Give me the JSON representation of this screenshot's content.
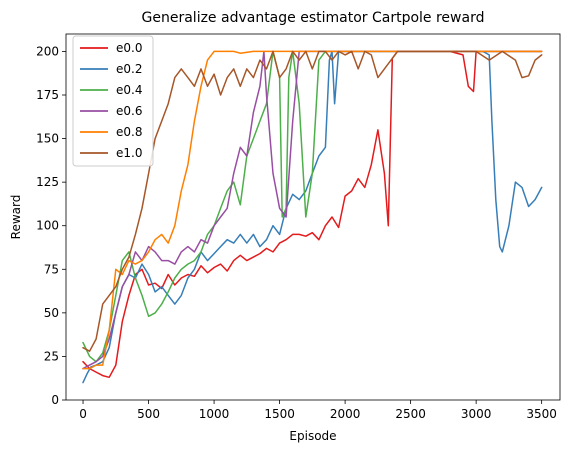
{
  "chart_data": {
    "type": "line",
    "title": "Generalize advantage estimator Cartpole reward",
    "xlabel": "Episode",
    "ylabel": "Reward",
    "xlim": [
      -130,
      3640
    ],
    "ylim": [
      0,
      210
    ],
    "xticks": [
      0,
      500,
      1000,
      1500,
      2000,
      2500,
      3000,
      3500
    ],
    "yticks": [
      0,
      25,
      50,
      75,
      100,
      125,
      150,
      175,
      200
    ],
    "grid": false,
    "legend_position": "top-left",
    "series": [
      {
        "name": "e0.0",
        "color": "#e41a1c",
        "x": [
          0,
          50,
          100,
          150,
          200,
          250,
          300,
          350,
          400,
          450,
          500,
          550,
          600,
          650,
          700,
          750,
          800,
          850,
          900,
          950,
          1000,
          1050,
          1100,
          1150,
          1200,
          1250,
          1300,
          1350,
          1400,
          1450,
          1500,
          1550,
          1600,
          1650,
          1700,
          1750,
          1800,
          1850,
          1900,
          1950,
          2000,
          2050,
          2100,
          2150,
          2200,
          2250,
          2300,
          2330,
          2360,
          2400,
          2500,
          2600,
          2700,
          2800,
          2900,
          2940,
          2980,
          3000,
          3100,
          3200,
          3300,
          3400,
          3500
        ],
        "y": [
          22,
          18,
          16,
          14,
          13,
          20,
          45,
          60,
          72,
          75,
          66,
          67,
          64,
          72,
          66,
          70,
          72,
          71,
          77,
          73,
          76,
          78,
          74,
          80,
          83,
          80,
          82,
          84,
          87,
          85,
          90,
          92,
          95,
          95,
          94,
          96,
          92,
          100,
          105,
          99,
          117,
          120,
          127,
          122,
          135,
          155,
          130,
          100,
          196,
          200,
          200,
          200,
          200,
          200,
          198,
          180,
          177,
          200,
          200,
          200,
          200,
          200,
          200
        ]
      },
      {
        "name": "e0.2",
        "color": "#377eb8",
        "x": [
          0,
          30,
          60,
          100,
          150,
          200,
          250,
          300,
          350,
          400,
          450,
          500,
          550,
          600,
          650,
          700,
          750,
          800,
          850,
          900,
          950,
          1000,
          1050,
          1100,
          1150,
          1200,
          1250,
          1300,
          1350,
          1400,
          1450,
          1500,
          1550,
          1600,
          1650,
          1700,
          1750,
          1800,
          1850,
          1880,
          1900,
          1920,
          1950,
          2000,
          2100,
          2200,
          2400,
          2600,
          2800,
          3000,
          3050,
          3100,
          3120,
          3150,
          3180,
          3200,
          3250,
          3300,
          3350,
          3400,
          3450,
          3500
        ],
        "y": [
          10,
          15,
          19,
          20,
          22,
          30,
          50,
          65,
          72,
          70,
          78,
          72,
          62,
          65,
          60,
          55,
          60,
          70,
          75,
          85,
          80,
          84,
          88,
          92,
          90,
          95,
          90,
          95,
          88,
          92,
          100,
          95,
          110,
          118,
          115,
          120,
          130,
          140,
          145,
          195,
          200,
          170,
          200,
          200,
          200,
          200,
          200,
          200,
          200,
          200,
          200,
          198,
          160,
          115,
          88,
          85,
          100,
          125,
          122,
          111,
          115,
          122
        ]
      },
      {
        "name": "e0.4",
        "color": "#4daf4a",
        "x": [
          0,
          50,
          100,
          150,
          200,
          250,
          300,
          350,
          400,
          450,
          500,
          550,
          600,
          650,
          700,
          750,
          800,
          850,
          900,
          950,
          1000,
          1050,
          1100,
          1150,
          1200,
          1250,
          1300,
          1350,
          1400,
          1450,
          1500,
          1520,
          1550,
          1570,
          1600,
          1650,
          1700,
          1750,
          1800,
          1850,
          1900,
          1950,
          2000,
          2100,
          2200,
          2400,
          2600,
          2800,
          3000,
          3200,
          3400,
          3500
        ],
        "y": [
          33,
          25,
          22,
          27,
          40,
          60,
          80,
          85,
          70,
          60,
          48,
          50,
          55,
          62,
          70,
          75,
          78,
          80,
          85,
          95,
          100,
          110,
          120,
          125,
          112,
          140,
          150,
          160,
          170,
          200,
          185,
          105,
          110,
          185,
          200,
          170,
          105,
          130,
          195,
          200,
          200,
          200,
          200,
          200,
          200,
          200,
          200,
          200,
          200,
          200,
          200,
          200
        ]
      },
      {
        "name": "e0.6",
        "color": "#984ea3",
        "x": [
          0,
          50,
          100,
          150,
          200,
          250,
          300,
          350,
          400,
          450,
          500,
          550,
          600,
          650,
          700,
          750,
          800,
          850,
          900,
          950,
          1000,
          1050,
          1100,
          1150,
          1200,
          1250,
          1300,
          1350,
          1380,
          1400,
          1450,
          1500,
          1550,
          1600,
          1650,
          1700,
          1800,
          2000,
          2200,
          2400,
          2600,
          2800,
          3000,
          3200,
          3400,
          3500
        ],
        "y": [
          18,
          20,
          22,
          25,
          35,
          50,
          65,
          72,
          85,
          80,
          88,
          85,
          80,
          80,
          78,
          85,
          88,
          85,
          92,
          90,
          100,
          105,
          110,
          130,
          145,
          140,
          165,
          180,
          200,
          175,
          130,
          110,
          105,
          160,
          200,
          200,
          200,
          200,
          200,
          200,
          200,
          200,
          200,
          200,
          200,
          200
        ]
      },
      {
        "name": "e0.8",
        "color": "#ff7f00",
        "x": [
          0,
          50,
          100,
          150,
          200,
          250,
          300,
          350,
          400,
          450,
          500,
          550,
          600,
          650,
          700,
          750,
          800,
          850,
          900,
          950,
          1000,
          1050,
          1100,
          1150,
          1200,
          1300,
          1400,
          1600,
          1800,
          2000,
          2200,
          2400,
          2600,
          2800,
          3000,
          3200,
          3400,
          3500
        ],
        "y": [
          18,
          18,
          20,
          20,
          40,
          75,
          72,
          80,
          78,
          80,
          85,
          92,
          95,
          90,
          100,
          120,
          135,
          160,
          180,
          195,
          200,
          200,
          200,
          200,
          199,
          200,
          200,
          200,
          200,
          200,
          200,
          200,
          200,
          200,
          200,
          200,
          200,
          200
        ]
      },
      {
        "name": "e1.0",
        "color": "#a65628",
        "x": [
          0,
          50,
          100,
          150,
          200,
          250,
          300,
          350,
          400,
          450,
          500,
          550,
          600,
          650,
          700,
          750,
          800,
          850,
          900,
          950,
          1000,
          1050,
          1100,
          1150,
          1200,
          1250,
          1300,
          1350,
          1400,
          1450,
          1500,
          1550,
          1600,
          1650,
          1700,
          1750,
          1800,
          1850,
          1900,
          1950,
          2000,
          2050,
          2100,
          2150,
          2200,
          2250,
          2300,
          2400,
          2600,
          2800,
          3000,
          3100,
          3200,
          3300,
          3350,
          3400,
          3450,
          3500
        ],
        "y": [
          30,
          28,
          35,
          55,
          60,
          65,
          75,
          82,
          95,
          110,
          130,
          150,
          160,
          170,
          185,
          190,
          185,
          180,
          190,
          180,
          187,
          175,
          185,
          190,
          180,
          190,
          185,
          195,
          190,
          200,
          185,
          190,
          200,
          195,
          200,
          190,
          200,
          200,
          195,
          200,
          198,
          200,
          190,
          200,
          198,
          185,
          190,
          200,
          200,
          200,
          200,
          195,
          200,
          195,
          185,
          186,
          195,
          198
        ]
      }
    ]
  }
}
